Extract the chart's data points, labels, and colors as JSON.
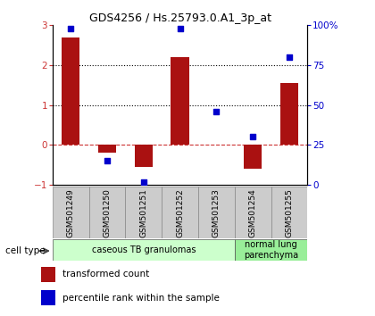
{
  "title": "GDS4256 / Hs.25793.0.A1_3p_at",
  "samples": [
    "GSM501249",
    "GSM501250",
    "GSM501251",
    "GSM501252",
    "GSM501253",
    "GSM501254",
    "GSM501255"
  ],
  "transformed_count": [
    2.7,
    -0.2,
    -0.55,
    2.2,
    0.0,
    -0.6,
    1.55
  ],
  "percentile_rank": [
    98,
    15,
    2,
    98,
    46,
    30,
    80
  ],
  "ylim_left": [
    -1,
    3
  ],
  "ylim_right": [
    0,
    100
  ],
  "yticks_left": [
    -1,
    0,
    1,
    2,
    3
  ],
  "yticks_right": [
    0,
    25,
    50,
    75,
    100
  ],
  "ytick_labels_right": [
    "0",
    "25",
    "50",
    "75",
    "100%"
  ],
  "hlines": [
    0,
    1,
    2
  ],
  "hline_styles": [
    "--",
    ":",
    ":"
  ],
  "hline_colors": [
    "#cc3333",
    "#000000",
    "#000000"
  ],
  "bar_color": "#aa1111",
  "dot_color": "#0000cc",
  "cell_type_groups": [
    {
      "label": "caseous TB granulomas",
      "start": 0,
      "end": 5,
      "color": "#ccffcc"
    },
    {
      "label": "normal lung\nparenchyma",
      "start": 5,
      "end": 7,
      "color": "#99ee99"
    }
  ],
  "cell_type_label": "cell type",
  "legend_items": [
    {
      "color": "#aa1111",
      "label": "transformed count"
    },
    {
      "color": "#0000cc",
      "label": "percentile rank within the sample"
    }
  ],
  "bg_color": "#ffffff",
  "tick_label_color_left": "#cc3333",
  "tick_label_color_right": "#0000cc",
  "bar_width": 0.5,
  "sample_box_color": "#cccccc",
  "sample_box_edge": "#888888"
}
